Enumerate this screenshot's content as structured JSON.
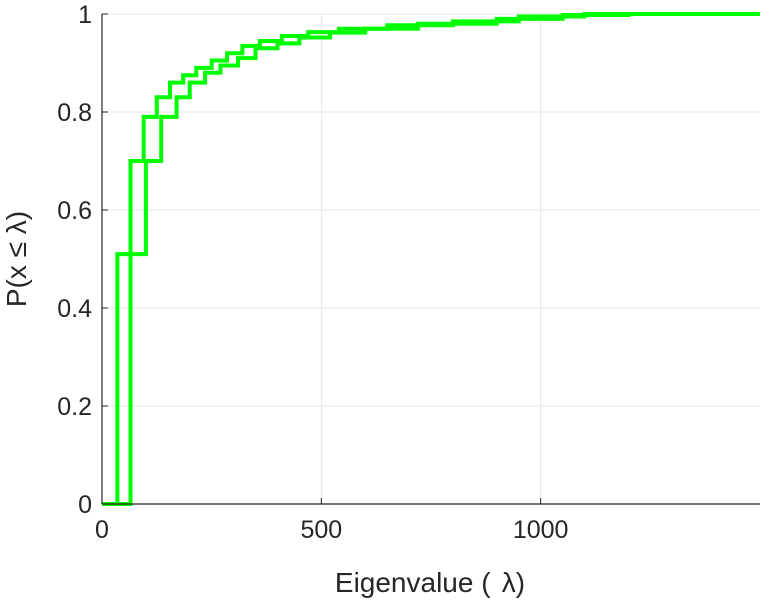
{
  "chart_data": {
    "type": "line",
    "step": true,
    "title": "",
    "xlabel": "Eigenvalue (  λ)",
    "ylabel": "P(x ≤ λ)",
    "xlim": [
      0,
      1500
    ],
    "ylim": [
      0,
      1
    ],
    "xticks": [
      0,
      500,
      1000
    ],
    "xtick_labels": [
      "0",
      "500",
      "1000"
    ],
    "yticks": [
      0,
      0.2,
      0.4,
      0.6,
      0.8,
      1
    ],
    "ytick_labels": [
      "0",
      "0.2",
      "0.4",
      "0.6",
      "0.8",
      "1"
    ],
    "grid": true,
    "line_color": "#00ff00",
    "series": [
      {
        "x": [
          0,
          35,
          35,
          65,
          65,
          95,
          95,
          125,
          125,
          155,
          155,
          185,
          185,
          215,
          215,
          250,
          250,
          285,
          285,
          320,
          320,
          360,
          360,
          410,
          410,
          470,
          470,
          540,
          540,
          650,
          650,
          800,
          800,
          950,
          950,
          1100,
          1100,
          1500
        ],
        "y": [
          0,
          0,
          0.51,
          0.51,
          0.7,
          0.7,
          0.79,
          0.79,
          0.83,
          0.83,
          0.86,
          0.86,
          0.875,
          0.875,
          0.89,
          0.89,
          0.905,
          0.905,
          0.92,
          0.92,
          0.935,
          0.935,
          0.945,
          0.945,
          0.955,
          0.955,
          0.963,
          0.963,
          0.97,
          0.97,
          0.977,
          0.977,
          0.985,
          0.985,
          0.995,
          0.995,
          1.0,
          1.0
        ]
      },
      {
        "x": [
          0,
          65,
          65,
          100,
          100,
          135,
          135,
          170,
          170,
          200,
          200,
          235,
          235,
          270,
          270,
          310,
          310,
          350,
          350,
          400,
          400,
          450,
          450,
          520,
          520,
          600,
          600,
          720,
          720,
          900,
          900,
          1050,
          1050,
          1200,
          1200,
          1500
        ],
        "y": [
          0,
          0,
          0.51,
          0.51,
          0.7,
          0.7,
          0.79,
          0.79,
          0.83,
          0.83,
          0.86,
          0.86,
          0.88,
          0.88,
          0.895,
          0.895,
          0.91,
          0.91,
          0.93,
          0.93,
          0.94,
          0.94,
          0.952,
          0.952,
          0.962,
          0.962,
          0.97,
          0.97,
          0.98,
          0.98,
          0.99,
          0.99,
          0.998,
          0.998,
          1.0,
          1.0
        ]
      }
    ]
  }
}
